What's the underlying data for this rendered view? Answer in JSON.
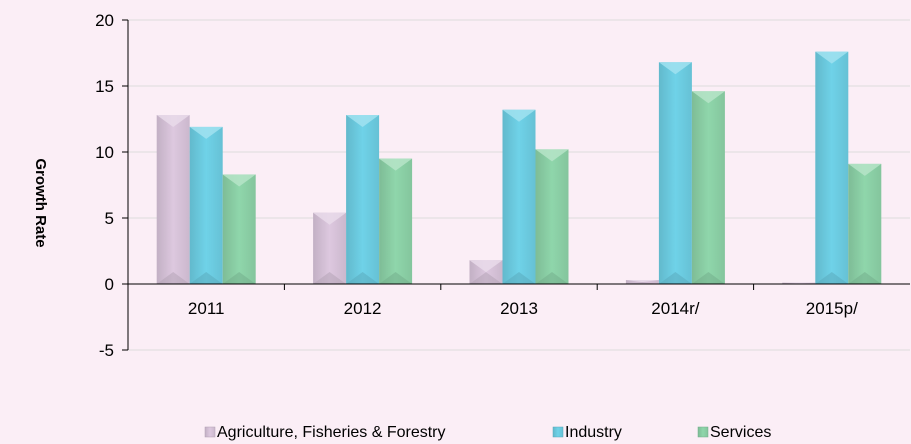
{
  "chart_data": {
    "type": "bar",
    "title": "",
    "xlabel": "",
    "ylabel": "Growth Rate",
    "categories": [
      "2011",
      "2012",
      "2013",
      "2014r/",
      "2015p/"
    ],
    "series": [
      {
        "name": "Agriculture, Fisheries & Forestry",
        "values": [
          12.8,
          5.4,
          1.8,
          0.3,
          0.1
        ],
        "color": "#ddc8df"
      },
      {
        "name": "Industry",
        "values": [
          11.9,
          12.8,
          13.2,
          16.8,
          17.6
        ],
        "color": "#6fd2e8"
      },
      {
        "name": "Services",
        "values": [
          8.3,
          9.5,
          10.2,
          14.6,
          9.1
        ],
        "color": "#8fd6ab"
      }
    ],
    "ylim": [
      -5,
      20
    ],
    "yticks": [
      -5,
      0,
      5,
      10,
      15,
      20
    ],
    "grid": true,
    "legend_position": "bottom"
  }
}
